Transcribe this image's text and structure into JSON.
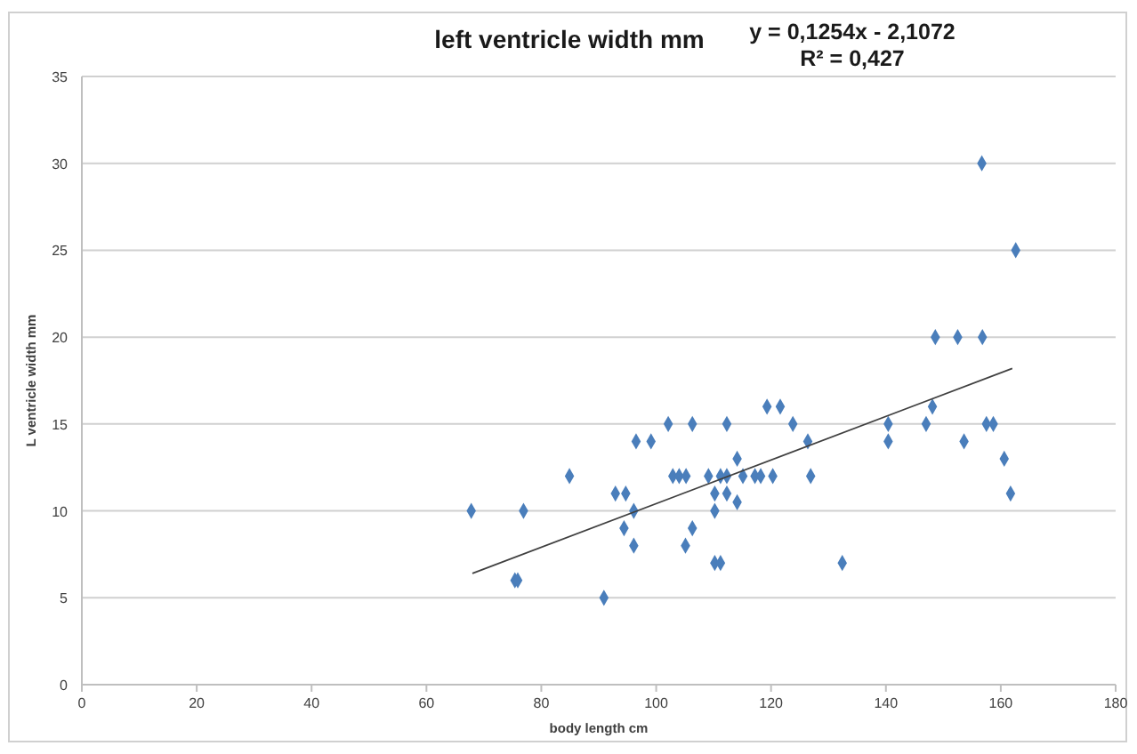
{
  "chart_data": {
    "type": "scatter",
    "title": "left ventricle width mm",
    "xlabel": "body length cm",
    "ylabel": "L ventricle width mm",
    "annotations": [
      "y = 0,1254x - 2,1072",
      "R² = 0,427"
    ],
    "xlim": [
      0,
      180
    ],
    "xticks": [
      0,
      20,
      40,
      60,
      80,
      100,
      120,
      140,
      160,
      180
    ],
    "ylim": [
      0,
      35
    ],
    "yticks": [
      0,
      5,
      10,
      15,
      20,
      25,
      30,
      35
    ],
    "grid": "y",
    "marker": "diamond",
    "series": [
      {
        "color": "#4a7ebb",
        "x": [
          67.8,
          76.9,
          75.4,
          75.9,
          84.9,
          90.9,
          92.9,
          94.7,
          96.1,
          94.4,
          96.1,
          96.5,
          99.1,
          102.1,
          106.3,
          112.3,
          102.9,
          104.0,
          105.2,
          106.3,
          105.1,
          109.1,
          111.2,
          112.3,
          110.2,
          112.3,
          110.2,
          110.2,
          111.2,
          114.1,
          114.1,
          115.1,
          117.2,
          118.2,
          120.3,
          119.3,
          121.6,
          123.8,
          126.4,
          126.9,
          132.4,
          140.4,
          140.4,
          147.0,
          148.1,
          153.6,
          157.5,
          158.7,
          160.6,
          161.7,
          148.6,
          152.5,
          156.8,
          156.7,
          162.6
        ],
        "values": [
          10,
          10,
          6,
          6,
          12,
          5,
          11,
          11,
          10,
          9,
          8,
          14,
          14,
          15,
          15,
          15,
          12,
          12,
          12,
          9,
          8,
          12,
          12,
          12,
          11,
          11,
          10,
          7,
          7,
          13,
          10.5,
          12,
          12,
          12,
          12,
          16,
          16,
          15,
          14,
          12,
          7,
          15,
          14,
          15,
          16,
          14,
          15,
          15,
          13,
          11,
          20,
          20,
          20,
          30,
          25
        ]
      },
      {
        "type": "line",
        "color": "#404040",
        "marker": "none",
        "x": [
          68,
          162
        ],
        "values": [
          6.4,
          18.2
        ]
      }
    ]
  }
}
